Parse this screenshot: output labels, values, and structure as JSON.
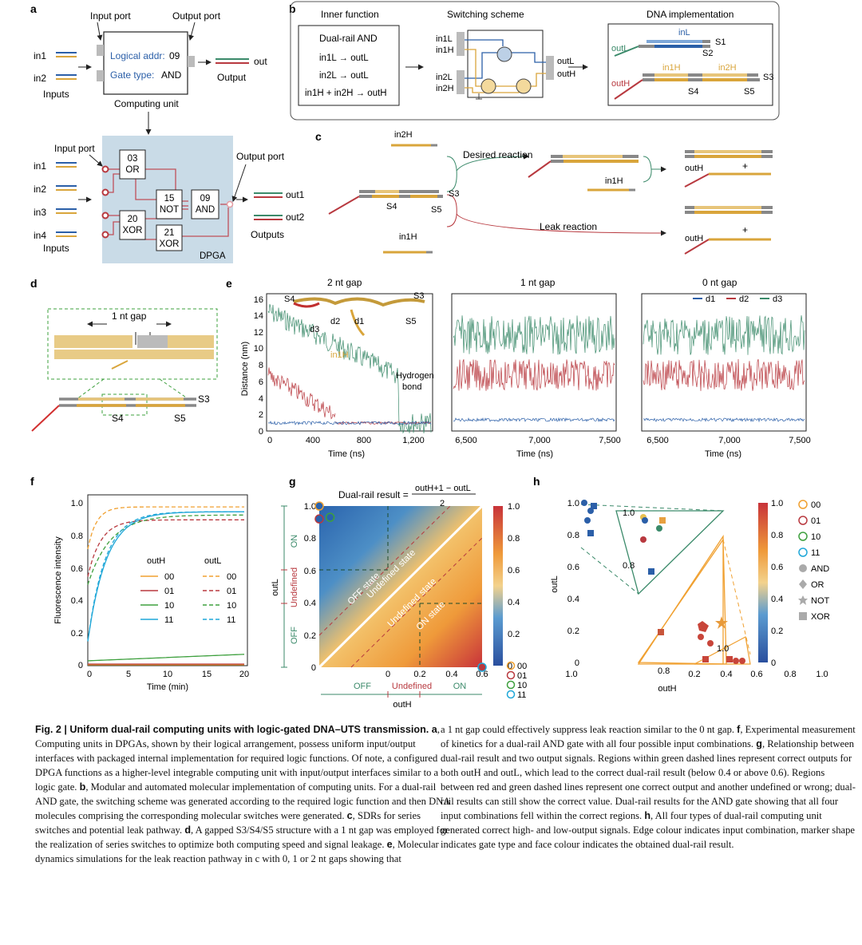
{
  "panel_letters": [
    "a",
    "b",
    "c",
    "d",
    "e",
    "f",
    "g",
    "h"
  ],
  "a": {
    "input_port": "Input port",
    "output_port": "Output port",
    "in1": "in1",
    "in2": "in2",
    "inputs": "Inputs",
    "logical_addr": "Logical addr:",
    "addr_value": "09",
    "gate_type": "Gate type:",
    "gate_value": "AND",
    "computing_unit": "Computing unit",
    "out": "out",
    "output": "Output",
    "in3": "in3",
    "in4": "in4",
    "gates": [
      {
        "num": "03",
        "name": "OR"
      },
      {
        "num": "15",
        "name": "NOT"
      },
      {
        "num": "09",
        "name": "AND"
      },
      {
        "num": "20",
        "name": "XOR"
      },
      {
        "num": "21",
        "name": "XOR"
      }
    ],
    "dpga": "DPGA",
    "out1": "out1",
    "out2": "out2",
    "outputs": "Outputs"
  },
  "b": {
    "inner_function": "Inner function",
    "switching_scheme": "Switching scheme",
    "dna_impl": "DNA implementation",
    "dual_rail_and": "Dual-rail AND",
    "rules": [
      "in1L → outL",
      "in2L → outL",
      "in1H + in2H → outH"
    ],
    "labels": [
      "in1L",
      "in1H",
      "in2L",
      "in2H",
      "outL",
      "outH",
      "inL",
      "S1",
      "S2",
      "in1H",
      "in2H",
      "S3",
      "S4",
      "S5"
    ]
  },
  "c": {
    "desired": "Desired reaction",
    "leak": "Leak reaction",
    "in2H": "in2H",
    "in1H": "in1H",
    "outH": "outH",
    "plus": "+",
    "S3": "S3",
    "S4": "S4",
    "S5": "S5"
  },
  "d": {
    "gap": "1 nt gap",
    "S3": "S3",
    "S4": "S4",
    "S5": "S5"
  },
  "e": {
    "titles": [
      "2 nt gap",
      "1 nt gap",
      "0 nt gap"
    ],
    "ylabel": "Distance (nm)",
    "xlabel": "Time (ns)",
    "legend": [
      "d1",
      "d2",
      "d3"
    ],
    "yticks": [
      "0",
      "2",
      "4",
      "6",
      "8",
      "10",
      "12",
      "14",
      "16"
    ],
    "xticks1": [
      "0",
      "400",
      "800",
      "1,200"
    ],
    "xticks2": [
      "6,500",
      "7,000",
      "7,500"
    ],
    "annot": [
      "S4",
      "S3",
      "S5",
      "d3",
      "d2",
      "d1",
      "in1H",
      "Hydrogen",
      "bond"
    ]
  },
  "f": {
    "ylabel": "Fluorescence intensity",
    "xlabel": "Time (min)",
    "yticks": [
      "0",
      "0.2",
      "0.4",
      "0.6",
      "0.8",
      "1.0"
    ],
    "xticks": [
      "0",
      "5",
      "10",
      "15",
      "20"
    ],
    "legend_h": "outH",
    "legend_l": "outL",
    "combos": [
      "00",
      "01",
      "10",
      "11"
    ]
  },
  "g": {
    "formula_prefix": "Dual-rail result =",
    "numerator": "outH+1 − outL",
    "denominator": "2",
    "states": [
      "OFF state",
      "Undefined state",
      "Undefined state",
      "ON state"
    ],
    "ylabel": "outL",
    "xlabel": "outH",
    "y_regions": [
      "ON",
      "Undefined",
      "OFF"
    ],
    "x_regions": [
      "OFF",
      "Undefined",
      "ON"
    ],
    "yticks": [
      "0",
      "0.2",
      "0.4",
      "0.6",
      "0.8",
      "1.0"
    ],
    "xticks": [
      "0",
      "0.2",
      "0.4",
      "0.6"
    ],
    "colorbar_ticks": [
      "1.0",
      "0.8",
      "0.6",
      "0.4",
      "0.2",
      "0"
    ],
    "legend": [
      "00",
      "01",
      "10",
      "11"
    ]
  },
  "h": {
    "ylabel": "outL",
    "xlabel": "outH",
    "yticks": [
      "1.0",
      "0.8",
      "0.6",
      "0.4",
      "0.2",
      "0"
    ],
    "xticks": [
      "1.0",
      "0.2",
      "0.4",
      "0.6",
      "0.8",
      "1.0"
    ],
    "inset_ticks": [
      "1.0",
      "0.8",
      "0.8",
      "1.0"
    ],
    "colorbar_ticks": [
      "1.0",
      "0.8",
      "0.6",
      "0.4",
      "0.2",
      "0"
    ],
    "legend_combos": [
      "00",
      "01",
      "10",
      "11"
    ],
    "legend_shapes": [
      "AND",
      "OR",
      "NOT",
      "XOR"
    ]
  },
  "colors": {
    "blue": "#2b5fa8",
    "red": "#b8393f",
    "green": "#3b8a6a",
    "gold": "#d9a53b",
    "orange": "#f0a030",
    "gray": "#9a9a9a"
  },
  "caption": {
    "left": [
      {
        "b": "Fig. 2 | Uniform dual-rail computing units with logic-gated DNA–UTS transmission. a",
        "t": ", Computing units in DPGAs, shown by their logical arrangement, possess uniform input/output interfaces with packaged internal implementation for required logic functions. Of note, a configured DPGA functions as a higher-level integrable computing unit with input/output interfaces similar to a logic gate. "
      },
      {
        "b": "b",
        "t": ", Modular and automated molecular implementation of computing units. For a dual-rail AND gate, the switching scheme was generated according to the required logic function and then DNA molecules comprising the corresponding molecular switches were generated. "
      },
      {
        "b": "c",
        "t": ", SDRs for series switches and potential leak pathway. "
      },
      {
        "b": "d",
        "t": ", A gapped S3/S4/S5 structure with a 1 nt gap was employed for the realization of series switches to optimize both computing speed and signal leakage. "
      },
      {
        "b": "e",
        "t": ", Molecular dynamics simulations for the leak reaction pathway in c with 0, 1 or 2 nt gaps showing that"
      }
    ],
    "right": [
      {
        "b": "",
        "t": "a 1 nt gap could effectively suppress leak reaction similar to the 0 nt gap. "
      },
      {
        "b": "f",
        "t": ", Experimental measurement of kinetics for a dual-rail AND gate with all four possible input combinations. "
      },
      {
        "b": "g",
        "t": ", Relationship between dual-rail result and two output signals. Regions within green dashed lines represent correct outputs for both outH and outL, which lead to the correct dual-rail result (below 0.4 or above 0.6). Regions between red and green dashed lines represent one correct output and another undefined or wrong; dual-rail results can still show the correct value. Dual-rail results for the AND gate showing that all four input combinations fell within the correct regions. "
      },
      {
        "b": "h",
        "t": ", All four types of dual-rail computing unit generated correct high- and low-output signals. Edge colour indicates input combination, marker shape indicates gate type and face colour indicates the obtained dual-rail result."
      }
    ]
  }
}
